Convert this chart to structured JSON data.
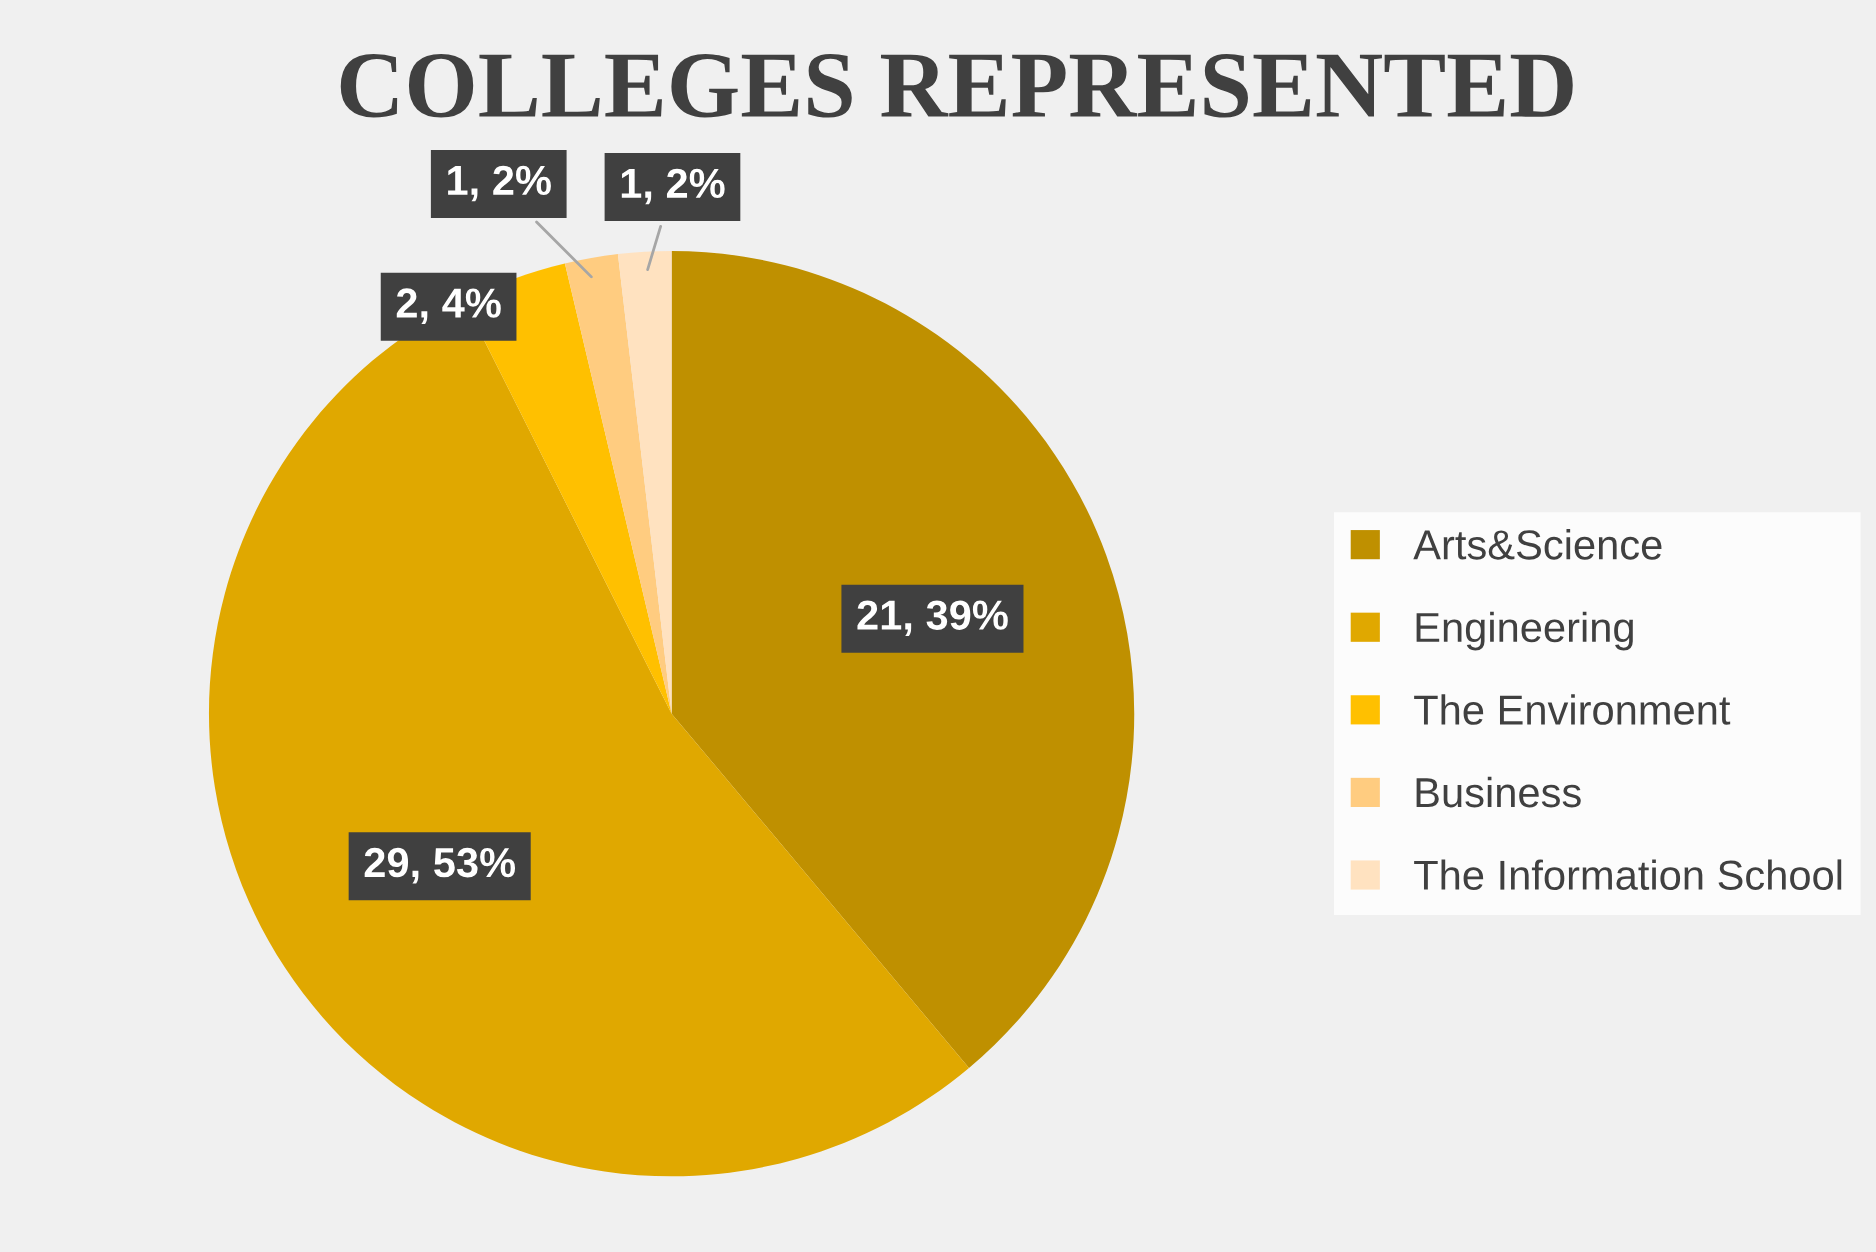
{
  "chart_data": {
    "type": "pie",
    "title": "COLLEGES REPRESENTED",
    "categories": [
      "Arts&Science",
      "Engineering",
      "The Environment",
      "Business",
      "The Information School"
    ],
    "values": [
      21,
      29,
      2,
      1,
      1
    ],
    "value_labels": [
      "21, 39%",
      "29, 53%",
      "2, 4%",
      "1, 2%",
      "1, 2%"
    ],
    "colors": [
      "#bf9000",
      "#e0a800",
      "#ffc000",
      "#ffcc80",
      "#ffe2c0"
    ],
    "legend": "right"
  }
}
